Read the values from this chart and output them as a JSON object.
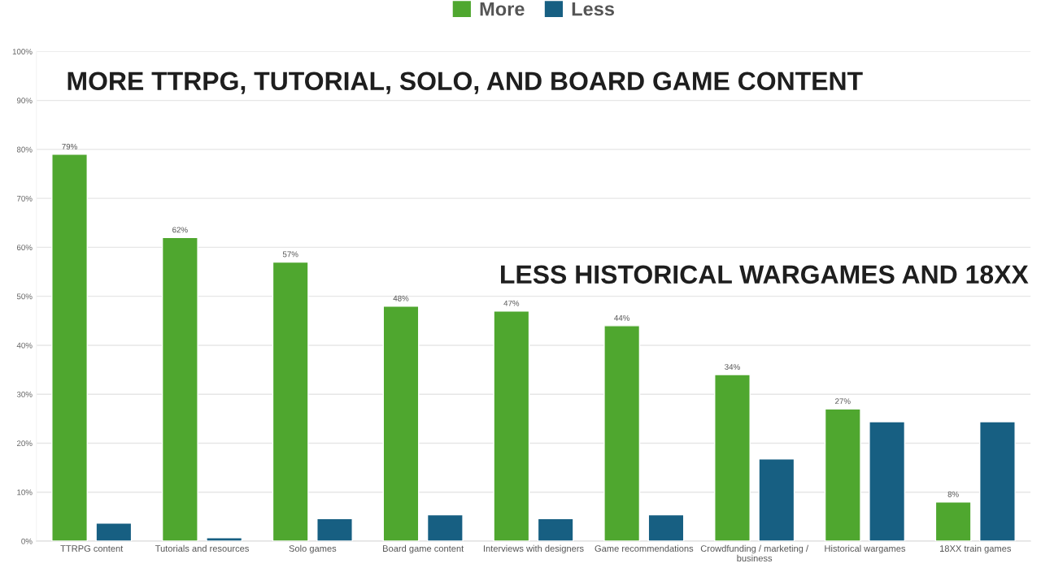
{
  "chart_data": {
    "type": "bar",
    "categories": [
      "TTRPG content",
      "Tutorials and resources",
      "Solo games",
      "Board game content",
      "Interviews with designers",
      "Game recommendations",
      "Crowdfunding / marketing /\nbusiness",
      "Historical wargames",
      "18XX train games"
    ],
    "series": [
      {
        "name": "More",
        "color": "#4fa72f",
        "values": [
          79,
          62,
          57,
          48,
          47,
          44,
          34,
          27,
          8
        ],
        "value_labels": [
          "79%",
          "62%",
          "57%",
          "48%",
          "47%",
          "44%",
          "34%",
          "27%",
          "8%"
        ]
      },
      {
        "name": "Less",
        "color": "#175f82",
        "values": [
          3.7,
          0.7,
          4.6,
          5.4,
          4.6,
          5.4,
          16.8,
          24.4,
          24.4
        ]
      }
    ],
    "ylim": [
      0,
      100
    ],
    "yticks": [
      {
        "value": 0,
        "label": "0%"
      },
      {
        "value": 10,
        "label": "10%"
      },
      {
        "value": 20,
        "label": "20%"
      },
      {
        "value": 30,
        "label": "30%"
      },
      {
        "value": 40,
        "label": "40%"
      },
      {
        "value": 50,
        "label": "50%"
      },
      {
        "value": 60,
        "label": "60%"
      },
      {
        "value": 70,
        "label": "70%"
      },
      {
        "value": 80,
        "label": "80%"
      },
      {
        "value": 90,
        "label": "90%"
      },
      {
        "value": 100,
        "label": "100%"
      }
    ],
    "grid": "y",
    "legend": "top",
    "annotations": [
      "MORE TTRPG, TUTORIAL, SOLO, AND BOARD GAME CONTENT",
      "LESS HISTORICAL WARGAMES AND 18XX"
    ]
  }
}
